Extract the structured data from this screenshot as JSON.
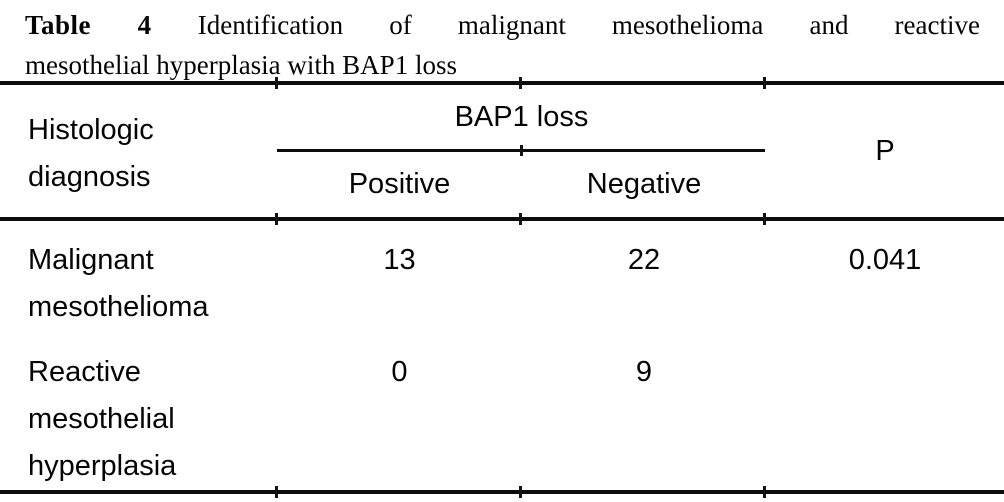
{
  "title": {
    "bold_prefix": "Table 4",
    "line1_rest": "Identification of malignant mesothelioma and reactive",
    "line2": "mesothelial hyperplasia with BAP1 loss",
    "full_text": "Table 4 Identification of malignant mesothelioma and reactive mesothelial hyperplasia with BAP1 loss"
  },
  "table": {
    "corner_header": {
      "text": "Histologic diagnosis",
      "lines": [
        "Histologic",
        "diagnosis"
      ]
    },
    "group_header": "BAP1 loss",
    "sub_headers": [
      "Positive",
      "Negative"
    ],
    "p_header": "P",
    "rows": [
      {
        "diagnosis": "Malignant mesothelioma",
        "diagnosis_lines": [
          "Malignant",
          "mesothelioma"
        ],
        "bap1_positive": "13",
        "bap1_negative": "22",
        "p_value": "0.041"
      },
      {
        "diagnosis": "Reactive mesothelial hyperplasia",
        "diagnosis_lines": [
          "Reactive",
          "mesothelial",
          "hyperplasia"
        ],
        "bap1_positive": "0",
        "bap1_negative": "9",
        "p_value": ""
      }
    ]
  },
  "chart_data": {
    "type": "table",
    "title": "Table 4 Identification of malignant mesothelioma and reactive mesothelial hyperplasia with BAP1 loss",
    "columns": [
      "Histologic diagnosis",
      "BAP1 loss - Positive",
      "BAP1 loss - Negative",
      "P"
    ],
    "rows": [
      [
        "Malignant mesothelioma",
        13,
        22,
        0.041
      ],
      [
        "Reactive mesothelial hyperplasia",
        0,
        9,
        null
      ]
    ]
  },
  "colors": {
    "background": "#ffffff",
    "text": "#050505",
    "rule": "#0c0c0c"
  }
}
